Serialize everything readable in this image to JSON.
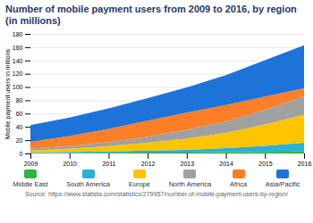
{
  "chart_data": {
    "type": "area",
    "stacked": true,
    "title": "Number of mobile payment users from 2009 to 2016, by region (in millions)",
    "y_label": "Mobile payment users in millions",
    "source": "Source: https://www.statista.com/statistics/279957/number-of-mobile-payment-users-by-region/",
    "x": [
      2009,
      2010,
      2011,
      2012,
      2013,
      2014,
      2015,
      2016
    ],
    "series": [
      {
        "name": "Middle East",
        "color": "#2db34a",
        "values": [
          0.5,
          0.7,
          1,
          1.2,
          1.5,
          2,
          2.5,
          3
        ]
      },
      {
        "name": "South America",
        "color": "#2bb0d6",
        "values": [
          1,
          1.5,
          2,
          3,
          4,
          6,
          9,
          13
        ]
      },
      {
        "name": "Europe",
        "color": "#ffc400",
        "values": [
          3,
          5,
          8,
          12,
          17,
          23,
          32,
          42
        ]
      },
      {
        "name": "North America",
        "color": "#a0a0a0",
        "values": [
          3,
          4,
          6,
          9,
          13,
          17,
          22,
          28
        ]
      },
      {
        "name": "Africa",
        "color": "#ff7f27",
        "values": [
          10,
          15,
          20,
          24,
          26,
          25,
          20,
          12
        ]
      },
      {
        "name": "Asia/Pacific",
        "color": "#1e73d8",
        "values": [
          25,
          28,
          31,
          34,
          38,
          45,
          55,
          65
        ]
      }
    ],
    "xlim": [
      2009,
      2016
    ],
    "xticks": [
      2009,
      2010,
      2011,
      2012,
      2013,
      2014,
      2015,
      2016
    ],
    "ylim": [
      0,
      180
    ],
    "yticks": [
      0,
      20,
      40,
      60,
      80,
      100,
      120,
      140,
      160,
      180
    ],
    "grid": true
  }
}
